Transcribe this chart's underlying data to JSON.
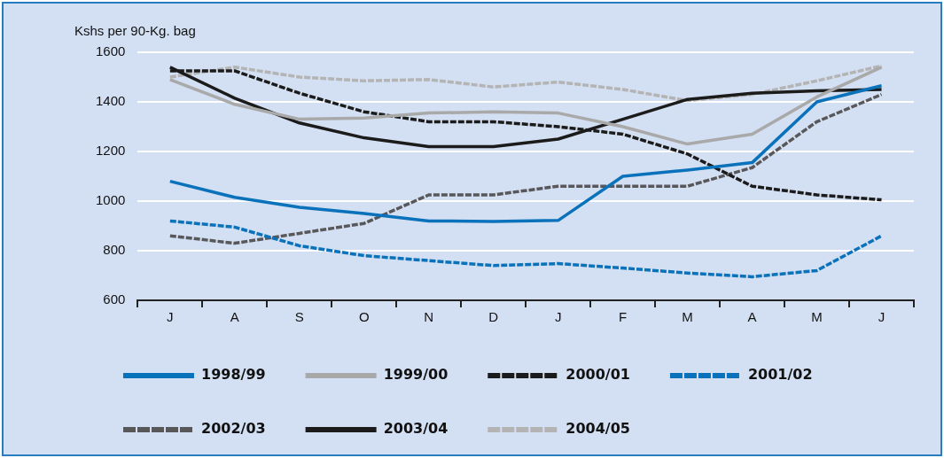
{
  "chart_data": {
    "type": "line",
    "ylabel": "Kshs per 90-Kg. bag",
    "categories": [
      "J",
      "A",
      "S",
      "O",
      "N",
      "D",
      "J",
      "F",
      "M",
      "A",
      "M",
      "J"
    ],
    "series": [
      {
        "name": "1998/99",
        "color": "#0a72ba",
        "line_style": "solid",
        "values": [
          1080,
          1015,
          975,
          950,
          920,
          918,
          922,
          1100,
          1125,
          1155,
          1400,
          1465
        ]
      },
      {
        "name": "1999/00",
        "color": "#a9a9a9",
        "line_style": "solid",
        "values": [
          1490,
          1390,
          1330,
          1335,
          1355,
          1360,
          1355,
          1300,
          1230,
          1270,
          1420,
          1540
        ]
      },
      {
        "name": "2000/01",
        "color": "#1b1b1b",
        "line_style": "dashed",
        "values": [
          1525,
          1525,
          1435,
          1360,
          1320,
          1320,
          1300,
          1270,
          1190,
          1060,
          1025,
          1005
        ]
      },
      {
        "name": "2001/02",
        "color": "#0a72ba",
        "line_style": "dashed",
        "values": [
          920,
          895,
          820,
          780,
          760,
          740,
          748,
          730,
          710,
          695,
          720,
          860
        ]
      },
      {
        "name": "2002/03",
        "color": "#58575a",
        "line_style": "dashed",
        "values": [
          860,
          830,
          870,
          910,
          1025,
          1025,
          1060,
          1060,
          1060,
          1135,
          1320,
          1430
        ]
      },
      {
        "name": "2003/04",
        "color": "#1b1b1b",
        "line_style": "solid",
        "values": [
          1540,
          1415,
          1315,
          1255,
          1220,
          1220,
          1250,
          1330,
          1410,
          1435,
          1445,
          1450
        ]
      },
      {
        "name": "2004/05",
        "color": "#b4b4b4",
        "line_style": "dashed",
        "values": [
          1500,
          1540,
          1500,
          1485,
          1490,
          1460,
          1480,
          1450,
          1405,
          1430,
          1485,
          1545
        ]
      }
    ],
    "ylim": [
      600,
      1600
    ],
    "yticks": [
      600,
      800,
      1000,
      1200,
      1400,
      1600
    ],
    "grid": "y",
    "legend": "bottom",
    "marker": "none"
  }
}
